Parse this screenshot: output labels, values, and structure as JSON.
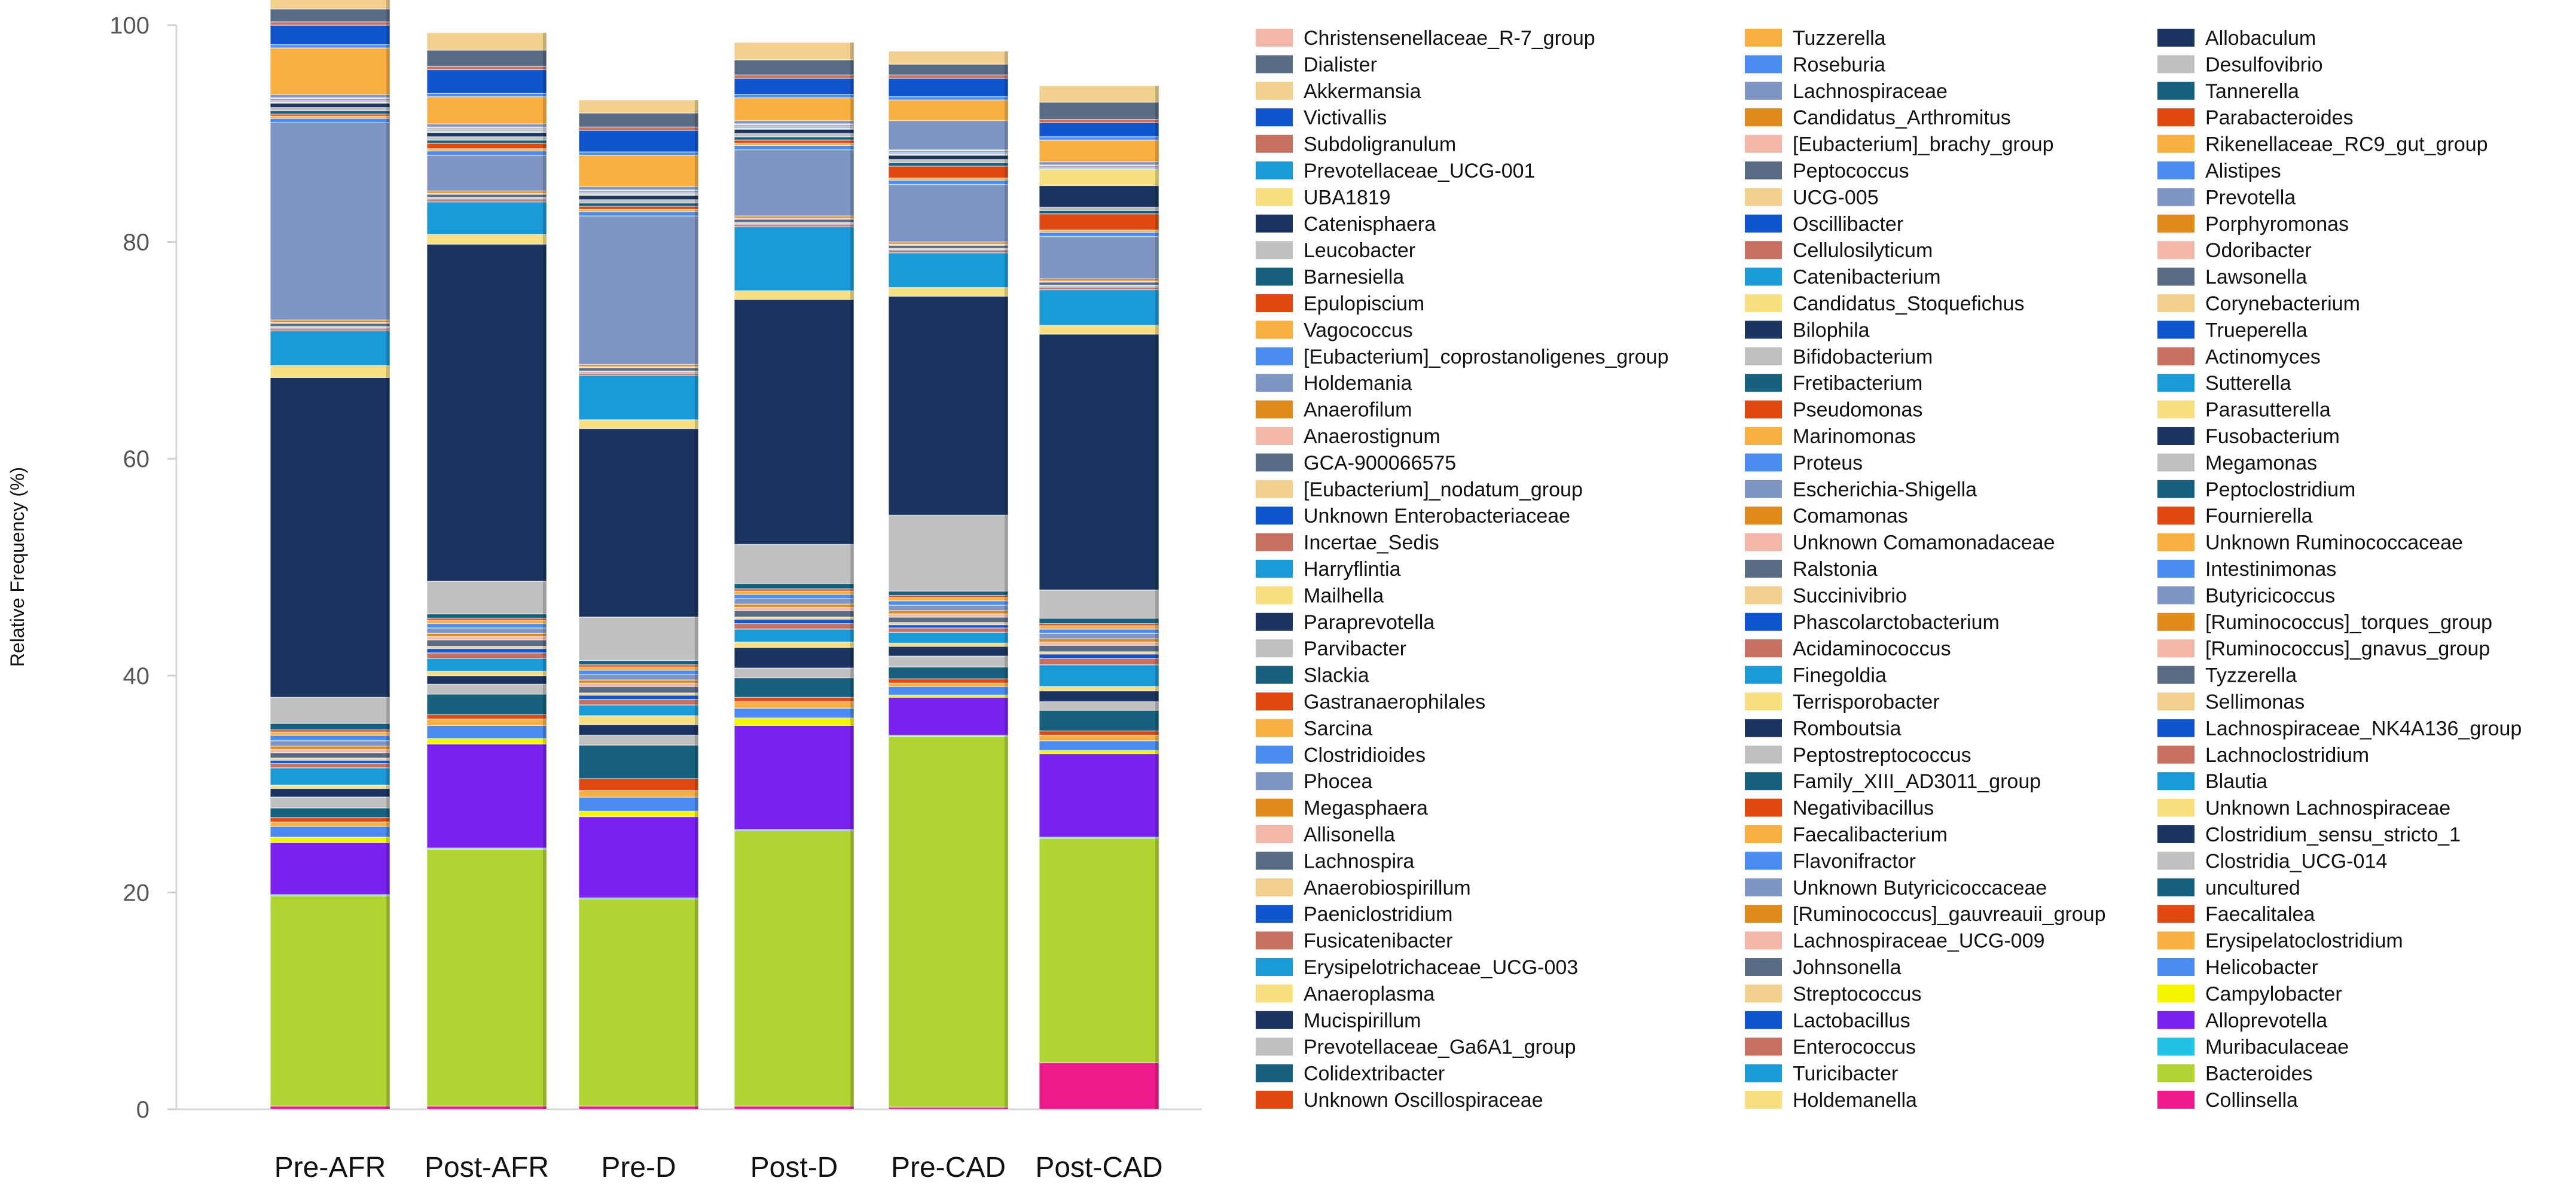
{
  "chart_data": {
    "type": "bar",
    "stacked": true,
    "ylabel": "Relative Frequency (%)",
    "xlabel": "",
    "ylim": [
      0,
      100
    ],
    "yticks": [
      0,
      20,
      40,
      60,
      80,
      100
    ],
    "grid": false,
    "legend_position": "right",
    "categories": [
      "Pre-AFR",
      "Post-AFR",
      "Pre-D",
      "Post-D",
      "Pre-CAD",
      "Post-CAD"
    ],
    "legend": [
      {
        "name": "Christensenellaceae_R-7_group",
        "color": "#f4b8a8"
      },
      {
        "name": "Dialister",
        "color": "#5a6b84"
      },
      {
        "name": "Akkermansia",
        "color": "#f2d08e"
      },
      {
        "name": "Victivallis",
        "color": "#1155cc"
      },
      {
        "name": "Subdoligranulum",
        "color": "#c87060"
      },
      {
        "name": "Prevotellaceae_UCG-001",
        "color": "#1a9ad6"
      },
      {
        "name": "UBA1819",
        "color": "#f8e082"
      },
      {
        "name": "Catenisphaera",
        "color": "#1c3560"
      },
      {
        "name": "Leucobacter",
        "color": "#c0c0c0"
      },
      {
        "name": "Barnesiella",
        "color": "#17607e"
      },
      {
        "name": "Epulopiscium",
        "color": "#e04a12"
      },
      {
        "name": "Vagococcus",
        "color": "#fab040"
      },
      {
        "name": "[Eubacterium]_coprostanoligenes_group",
        "color": "#4a8cf0"
      },
      {
        "name": "Holdemania",
        "color": "#7f95c4"
      },
      {
        "name": "Anaerofilum",
        "color": "#de8a1c"
      },
      {
        "name": "Anaerostignum",
        "color": "#f4b8a8"
      },
      {
        "name": "GCA-900066575",
        "color": "#5a6b84"
      },
      {
        "name": "[Eubacterium]_nodatum_group",
        "color": "#f2d08e"
      },
      {
        "name": "Unknown Enterobacteriaceae",
        "color": "#1155cc"
      },
      {
        "name": "Incertae_Sedis",
        "color": "#c87060"
      },
      {
        "name": "Harryflintia",
        "color": "#1a9ad6"
      },
      {
        "name": "Mailhella",
        "color": "#f8e082"
      },
      {
        "name": "Paraprevotella",
        "color": "#1c3560"
      },
      {
        "name": "Parvibacter",
        "color": "#c0c0c0"
      },
      {
        "name": "Slackia",
        "color": "#17607e"
      },
      {
        "name": "Gastranaerophilales",
        "color": "#e04a12"
      },
      {
        "name": "Sarcina",
        "color": "#fab040"
      },
      {
        "name": "Clostridioides",
        "color": "#4a8cf0"
      },
      {
        "name": "Phocea",
        "color": "#7f95c4"
      },
      {
        "name": "Megasphaera",
        "color": "#de8a1c"
      },
      {
        "name": "Allisonella",
        "color": "#f4b8a8"
      },
      {
        "name": "Lachnospira",
        "color": "#5a6b84"
      },
      {
        "name": "Anaerobiospirillum",
        "color": "#f2d08e"
      },
      {
        "name": "Paeniclostridium",
        "color": "#1155cc"
      },
      {
        "name": "Fusicatenibacter",
        "color": "#c87060"
      },
      {
        "name": "Erysipelotrichaceae_UCG-003",
        "color": "#1a9ad6"
      },
      {
        "name": "Anaeroplasma",
        "color": "#f8e082"
      },
      {
        "name": "Mucispirillum",
        "color": "#1c3560"
      },
      {
        "name": "Prevotellaceae_Ga6A1_group",
        "color": "#c0c0c0"
      },
      {
        "name": "Colidextribacter",
        "color": "#17607e"
      },
      {
        "name": "Unknown Oscillospiraceae",
        "color": "#e04a12"
      },
      {
        "name": "Tuzzerella",
        "color": "#fab040"
      },
      {
        "name": "Roseburia",
        "color": "#4a8cf0"
      },
      {
        "name": "Lachnospiraceae",
        "color": "#7f95c4"
      },
      {
        "name": "Candidatus_Arthromitus",
        "color": "#de8a1c"
      },
      {
        "name": "[Eubacterium]_brachy_group",
        "color": "#f4b8a8"
      },
      {
        "name": "Peptococcus",
        "color": "#5a6b84"
      },
      {
        "name": "UCG-005",
        "color": "#f2d08e"
      },
      {
        "name": "Oscillibacter",
        "color": "#1155cc"
      },
      {
        "name": "Cellulosilyticum",
        "color": "#c87060"
      },
      {
        "name": "Catenibacterium",
        "color": "#1a9ad6"
      },
      {
        "name": "Candidatus_Stoquefichus",
        "color": "#f8e082"
      },
      {
        "name": "Bilophila",
        "color": "#1c3560"
      },
      {
        "name": "Bifidobacterium",
        "color": "#c0c0c0"
      },
      {
        "name": "Fretibacterium",
        "color": "#17607e"
      },
      {
        "name": "Pseudomonas",
        "color": "#e04a12"
      },
      {
        "name": "Marinomonas",
        "color": "#fab040"
      },
      {
        "name": "Proteus",
        "color": "#4a8cf0"
      },
      {
        "name": "Escherichia-Shigella",
        "color": "#7f95c4"
      },
      {
        "name": "Comamonas",
        "color": "#de8a1c"
      },
      {
        "name": "Unknown Comamonadaceae",
        "color": "#f4b8a8"
      },
      {
        "name": "Ralstonia",
        "color": "#5a6b84"
      },
      {
        "name": "Succinivibrio",
        "color": "#f2d08e"
      },
      {
        "name": "Phascolarctobacterium",
        "color": "#1155cc"
      },
      {
        "name": "Acidaminococcus",
        "color": "#c87060"
      },
      {
        "name": "Finegoldia",
        "color": "#1a9ad6"
      },
      {
        "name": "Terrisporobacter",
        "color": "#f8e082"
      },
      {
        "name": "Romboutsia",
        "color": "#1c3560"
      },
      {
        "name": "Peptostreptococcus",
        "color": "#c0c0c0"
      },
      {
        "name": "Family_XIII_AD3011_group",
        "color": "#17607e"
      },
      {
        "name": "Negativibacillus",
        "color": "#e04a12"
      },
      {
        "name": "Faecalibacterium",
        "color": "#fab040"
      },
      {
        "name": "Flavonifractor",
        "color": "#4a8cf0"
      },
      {
        "name": "Unknown Butyricicoccaceae",
        "color": "#7f95c4"
      },
      {
        "name": "[Ruminococcus]_gauvreauii_group",
        "color": "#de8a1c"
      },
      {
        "name": "Lachnospiraceae_UCG-009",
        "color": "#f4b8a8"
      },
      {
        "name": "Johnsonella",
        "color": "#5a6b84"
      },
      {
        "name": "Streptococcus",
        "color": "#f2d08e"
      },
      {
        "name": "Lactobacillus",
        "color": "#1155cc"
      },
      {
        "name": "Enterococcus",
        "color": "#c87060"
      },
      {
        "name": "Turicibacter",
        "color": "#1a9ad6"
      },
      {
        "name": "Holdemanella",
        "color": "#f8e082"
      },
      {
        "name": "Allobaculum",
        "color": "#1c3560"
      },
      {
        "name": "Desulfovibrio",
        "color": "#c0c0c0"
      },
      {
        "name": "Tannerella",
        "color": "#17607e"
      },
      {
        "name": "Parabacteroides",
        "color": "#e04a12"
      },
      {
        "name": "Rikenellaceae_RC9_gut_group",
        "color": "#fab040"
      },
      {
        "name": "Alistipes",
        "color": "#4a8cf0"
      },
      {
        "name": "Prevotella",
        "color": "#7f95c4"
      },
      {
        "name": "Porphyromonas",
        "color": "#de8a1c"
      },
      {
        "name": "Odoribacter",
        "color": "#f4b8a8"
      },
      {
        "name": "Lawsonella",
        "color": "#5a6b84"
      },
      {
        "name": "Corynebacterium",
        "color": "#f2d08e"
      },
      {
        "name": "Trueperella",
        "color": "#1155cc"
      },
      {
        "name": "Actinomyces",
        "color": "#c87060"
      },
      {
        "name": "Sutterella",
        "color": "#1a9ad6"
      },
      {
        "name": "Parasutterella",
        "color": "#f8e082"
      },
      {
        "name": "Fusobacterium",
        "color": "#1c3560"
      },
      {
        "name": "Megamonas",
        "color": "#c0c0c0"
      },
      {
        "name": "Peptoclostridium",
        "color": "#17607e"
      },
      {
        "name": "Fournierella",
        "color": "#e04a12"
      },
      {
        "name": "Unknown Ruminococcaceae",
        "color": "#fab040"
      },
      {
        "name": "Intestinimonas",
        "color": "#4a8cf0"
      },
      {
        "name": "Butyricicoccus",
        "color": "#7f95c4"
      },
      {
        "name": "[Ruminococcus]_torques_group",
        "color": "#de8a1c"
      },
      {
        "name": "[Ruminococcus]_gnavus_group",
        "color": "#f4b8a8"
      },
      {
        "name": "Tyzzerella",
        "color": "#5a6b84"
      },
      {
        "name": "Sellimonas",
        "color": "#f2d08e"
      },
      {
        "name": "Lachnospiraceae_NK4A136_group",
        "color": "#1155cc"
      },
      {
        "name": "Lachnoclostridium",
        "color": "#c87060"
      },
      {
        "name": "Blautia",
        "color": "#1a9ad6"
      },
      {
        "name": "Unknown Lachnospiraceae",
        "color": "#f8e082"
      },
      {
        "name": "Clostridium_sensu_stricto_1",
        "color": "#1c3560"
      },
      {
        "name": "Clostridia_UCG-014",
        "color": "#c0c0c0"
      },
      {
        "name": "uncultured",
        "color": "#17607e"
      },
      {
        "name": "Faecalitalea",
        "color": "#e04a12"
      },
      {
        "name": "Erysipelatoclostridium",
        "color": "#fab040"
      },
      {
        "name": "Helicobacter",
        "color": "#4a8cf0"
      },
      {
        "name": "Campylobacter",
        "color": "#f5f500"
      },
      {
        "name": "Alloprevotella",
        "color": "#7b22f0"
      },
      {
        "name": "Muribaculaceae",
        "color": "#22c2e8"
      },
      {
        "name": "Bacteroides",
        "color": "#b0d432"
      },
      {
        "name": "Collinsella",
        "color": "#ee1a8c"
      }
    ],
    "series": [
      {
        "name": "Collinsella",
        "values": [
          0.3,
          0.3,
          0.3,
          0.3,
          0.2,
          4.3
        ]
      },
      {
        "name": "Bacteroides",
        "values": [
          19.4,
          23.7,
          19.1,
          25.4,
          34.2,
          20.7
        ]
      },
      {
        "name": "Muribaculaceae",
        "values": [
          0.1,
          0.1,
          0.1,
          0.1,
          0.1,
          0.1
        ]
      },
      {
        "name": "Alloprevotella",
        "values": [
          4.8,
          9.6,
          7.5,
          9.6,
          3.5,
          7.7
        ]
      },
      {
        "name": "Campylobacter",
        "values": [
          0.5,
          0.5,
          0.5,
          0.7,
          0.2,
          0.3
        ]
      },
      {
        "name": "Helicobacter",
        "values": [
          1.0,
          1.2,
          1.3,
          0.9,
          0.8,
          0.9
        ]
      },
      {
        "name": "Erysipelatoclostridium",
        "values": [
          0.4,
          0.6,
          0.6,
          0.6,
          0.3,
          0.5
        ]
      },
      {
        "name": "Faecalitalea",
        "values": [
          0.4,
          0.4,
          1.1,
          0.4,
          0.4,
          0.4
        ]
      },
      {
        "name": "uncultured",
        "values": [
          0.9,
          1.9,
          3.1,
          1.8,
          1.1,
          1.9
        ]
      },
      {
        "name": "Clostridia_UCG-014",
        "values": [
          1.0,
          0.9,
          0.9,
          0.9,
          1.0,
          0.8
        ]
      },
      {
        "name": "Clostridium_sensu_stricto_1",
        "values": [
          0.8,
          0.8,
          1.0,
          1.9,
          0.9,
          1.0
        ]
      },
      {
        "name": "Unknown Lachnospiraceae",
        "values": [
          0.3,
          0.4,
          0.8,
          0.5,
          0.3,
          0.4
        ]
      },
      {
        "name": "Blautia",
        "values": [
          1.6,
          1.2,
          1.0,
          1.2,
          1.0,
          2.0
        ]
      },
      {
        "name": "Lachnoclostridium",
        "values": [
          0.4,
          0.5,
          0.5,
          0.5,
          0.4,
          0.6
        ]
      },
      {
        "name": "Lachnospiraceae_NK4A136_group",
        "values": [
          0.3,
          0.4,
          0.4,
          0.4,
          0.3,
          0.4
        ]
      },
      {
        "name": "Sellimonas",
        "values": [
          0.2,
          0.2,
          0.2,
          0.2,
          0.2,
          0.2
        ]
      },
      {
        "name": "Tyzzerella",
        "values": [
          0.5,
          0.6,
          0.6,
          0.6,
          0.5,
          0.6
        ]
      },
      {
        "name": "[Ruminococcus]_gnavus_group",
        "values": [
          0.3,
          0.3,
          0.3,
          0.3,
          0.3,
          0.3
        ]
      },
      {
        "name": "[Ruminococcus]_torques_group",
        "values": [
          0.3,
          0.3,
          0.3,
          0.3,
          0.3,
          0.3
        ]
      },
      {
        "name": "Butyricicoccus",
        "values": [
          0.5,
          0.5,
          0.5,
          0.5,
          0.5,
          0.5
        ]
      },
      {
        "name": "Intestinimonas",
        "values": [
          0.5,
          0.4,
          0.4,
          0.4,
          0.4,
          0.4
        ]
      },
      {
        "name": "Unknown Ruminococcaceae",
        "values": [
          0.3,
          0.3,
          0.3,
          0.3,
          0.3,
          0.3
        ]
      },
      {
        "name": "Fournierella",
        "values": [
          0.2,
          0.2,
          0.2,
          0.2,
          0.2,
          0.2
        ]
      },
      {
        "name": "Peptoclostridium",
        "values": [
          0.6,
          0.4,
          0.4,
          0.5,
          0.4,
          0.5
        ]
      },
      {
        "name": "Megamonas",
        "values": [
          2.4,
          3.0,
          4.0,
          3.6,
          7.0,
          2.6
        ]
      },
      {
        "name": "Fusobacterium",
        "values": [
          29.5,
          31.1,
          17.4,
          22.6,
          20.2,
          23.6
        ]
      },
      {
        "name": "Parasutterella",
        "values": [
          1.1,
          0.9,
          0.8,
          0.8,
          0.8,
          0.8
        ]
      },
      {
        "name": "Sutterella",
        "values": [
          3.2,
          3.0,
          4.1,
          5.9,
          3.2,
          3.3
        ]
      },
      {
        "name": "Actinomyces",
        "values": [
          0.2,
          0.2,
          0.2,
          0.2,
          0.2,
          0.2
        ]
      },
      {
        "name": "Trueperella",
        "values": [
          0.1,
          0.1,
          0.1,
          0.1,
          0.1,
          0.1
        ]
      },
      {
        "name": "Corynebacterium",
        "values": [
          0.1,
          0.1,
          0.1,
          0.1,
          0.1,
          0.1
        ]
      },
      {
        "name": "Lawsonella",
        "values": [
          0.3,
          0.3,
          0.3,
          0.3,
          0.3,
          0.3
        ]
      },
      {
        "name": "Odoribacter",
        "values": [
          0.1,
          0.1,
          0.1,
          0.1,
          0.1,
          0.1
        ]
      },
      {
        "name": "Porphyromonas",
        "values": [
          0.2,
          0.2,
          0.2,
          0.2,
          0.2,
          0.2
        ]
      },
      {
        "name": "Prevotella",
        "values": [
          18.2,
          3.3,
          13.7,
          6.1,
          5.3,
          3.9
        ]
      },
      {
        "name": "Alistipes",
        "values": [
          0.4,
          0.4,
          0.4,
          0.4,
          0.4,
          0.4
        ]
      },
      {
        "name": "Rikenellaceae_RC9_gut_group",
        "values": [
          0.2,
          0.2,
          0.2,
          0.2,
          0.2,
          0.2
        ]
      },
      {
        "name": "Parabacteroides",
        "values": [
          0.2,
          0.5,
          0.3,
          0.3,
          1.1,
          1.5
        ]
      },
      {
        "name": "Tannerella",
        "values": [
          0.3,
          0.3,
          0.3,
          0.3,
          0.3,
          0.3
        ]
      },
      {
        "name": "Desulfovibrio",
        "values": [
          0.3,
          0.3,
          0.3,
          0.3,
          0.3,
          0.3
        ]
      },
      {
        "name": "Allobaculum",
        "values": [
          0.4,
          0.4,
          0.4,
          0.4,
          0.4,
          2.0
        ]
      },
      {
        "name": "Holdemanella",
        "values": [
          0.1,
          0.1,
          0.1,
          0.1,
          0.1,
          1.5
        ]
      },
      {
        "name": "Turicibacter",
        "values": [
          0.1,
          0.1,
          0.1,
          0.1,
          0.1,
          0.1
        ]
      },
      {
        "name": "Enterococcus",
        "values": [
          0.1,
          0.1,
          0.1,
          0.1,
          0.1,
          0.1
        ]
      },
      {
        "name": "Lactobacillus",
        "values": [
          0.1,
          0.1,
          0.1,
          0.1,
          0.1,
          0.1
        ]
      },
      {
        "name": "Streptococcus",
        "values": [
          0.1,
          0.1,
          0.1,
          0.1,
          0.1,
          0.1
        ]
      },
      {
        "name": "Lachnospiraceae",
        "values": [
          0.3,
          0.3,
          0.3,
          0.3,
          2.7,
          0.3
        ]
      },
      {
        "name": "Faecalibacterium",
        "values": [
          4.3,
          2.5,
          2.9,
          2.1,
          1.9,
          2.0
        ]
      },
      {
        "name": "Roseburia",
        "values": [
          0.3,
          0.3,
          0.3,
          0.3,
          0.3,
          0.3
        ]
      },
      {
        "name": "Oscillibacter",
        "values": [
          1.8,
          2.2,
          2.0,
          1.5,
          1.7,
          1.3
        ]
      },
      {
        "name": "Subdoligranulum",
        "values": [
          0.3,
          0.3,
          0.3,
          0.3,
          0.3,
          0.3
        ]
      },
      {
        "name": "Dialister",
        "values": [
          1.2,
          1.5,
          1.3,
          1.4,
          1.0,
          1.6
        ]
      },
      {
        "name": "Akkermansia",
        "values": [
          1.0,
          1.6,
          1.2,
          1.6,
          1.2,
          1.5
        ]
      }
    ]
  }
}
